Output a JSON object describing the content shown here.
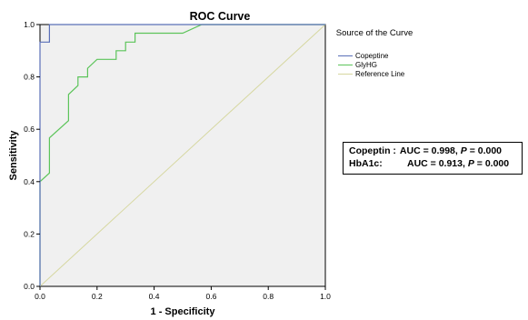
{
  "chart_data": {
    "type": "line",
    "title": "ROC Curve",
    "xlabel": "1 - Specificity",
    "ylabel": "Sensitivity",
    "xlim": [
      0.0,
      1.0
    ],
    "ylim": [
      0.0,
      1.0
    ],
    "x_ticks": [
      "0.0",
      "0.2",
      "0.4",
      "0.6",
      "0.8",
      "1.0"
    ],
    "y_ticks": [
      "0.0",
      "0.2",
      "0.4",
      "0.6",
      "0.8",
      "1.0"
    ],
    "grid": false,
    "legend_position": "right",
    "legend_title": "Source of the Curve",
    "series": [
      {
        "name": "Copeptine",
        "color": "#5a6fb8",
        "x": [
          0.0,
          0.0,
          0.033,
          0.033,
          1.0
        ],
        "y": [
          0.0,
          0.933,
          0.933,
          1.0,
          1.0
        ]
      },
      {
        "name": "GlyHG",
        "color": "#5cc45a",
        "x": [
          0.0,
          0.0,
          0.033,
          0.033,
          0.1,
          0.1,
          0.133,
          0.133,
          0.167,
          0.167,
          0.2,
          0.2,
          0.267,
          0.267,
          0.3,
          0.3,
          0.333,
          0.333,
          0.5,
          0.567,
          1.0
        ],
        "y": [
          0.0,
          0.4,
          0.433,
          0.567,
          0.633,
          0.733,
          0.767,
          0.8,
          0.8,
          0.833,
          0.867,
          0.867,
          0.867,
          0.9,
          0.9,
          0.933,
          0.933,
          0.967,
          0.967,
          1.0,
          1.0
        ]
      },
      {
        "name": "Reference Line",
        "color": "#d6d7a0",
        "x": [
          0.0,
          1.0
        ],
        "y": [
          0.0,
          1.0
        ]
      }
    ],
    "annotations": [
      {
        "label": "Copeptin :",
        "auc_text": "AUC = 0.998,",
        "p_label": "P",
        "p_text": "= 0.000"
      },
      {
        "label": "HbA1c:",
        "auc_text": "AUC = 0.913,",
        "p_label": "P",
        "p_text": "= 0.000"
      }
    ]
  }
}
